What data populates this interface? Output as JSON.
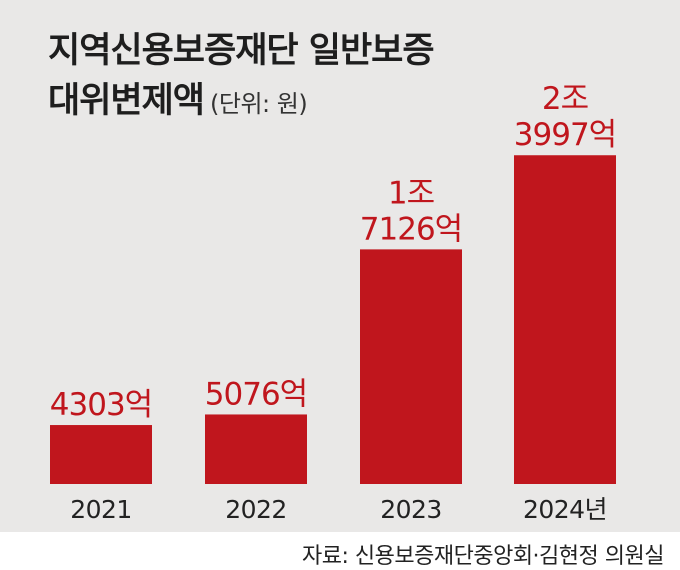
{
  "title_line1": "지역신용보증재단 일반보증",
  "title_line2": "대위변제액",
  "unit_note": "(단위: 원)",
  "source": "자료: 신용보증재단중앙회·김현정 의원실",
  "colors": {
    "bar": "#c0161d",
    "label": "#c0161d",
    "panel": "#e9e8e7",
    "axis": "#222222"
  },
  "chart_data": {
    "type": "bar",
    "title": "지역신용보증재단 일반보증 대위변제액",
    "unit": "(단위: 원)",
    "categories": [
      "2021",
      "2022",
      "2023",
      "2024년"
    ],
    "values": [
      4303,
      5076,
      17126,
      23997
    ],
    "value_unit": "억 원",
    "data_labels": [
      [
        "4303억"
      ],
      [
        "5076억"
      ],
      [
        "1조",
        "7126억"
      ],
      [
        "2조",
        "3997억"
      ]
    ],
    "xlabel": "",
    "ylabel": "",
    "ylim": [
      0,
      27000
    ],
    "grid": false,
    "legend": "none"
  }
}
